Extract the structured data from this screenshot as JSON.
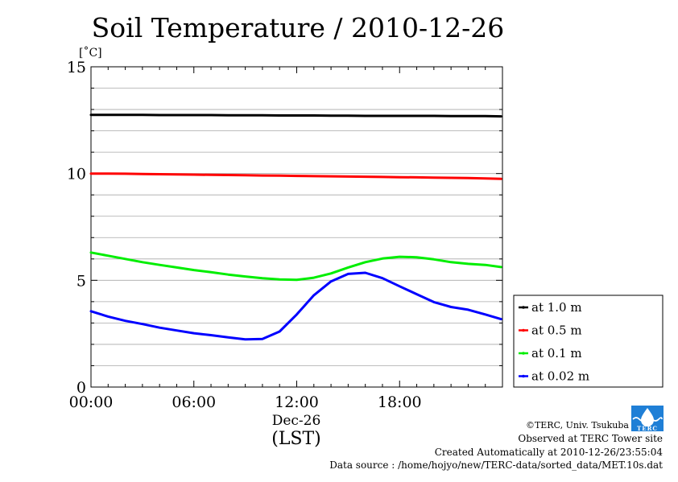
{
  "chart_data": {
    "type": "line",
    "title": "Soil Temperature / 2010-12-26",
    "y_unit_label": "[˚C]",
    "xlabel_date": "Dec-26",
    "xlabel": "(LST)",
    "ylabel": "",
    "ylim": [
      0,
      15
    ],
    "yticks": [
      0,
      5,
      10,
      15
    ],
    "xlim": [
      "00:00",
      "24:00"
    ],
    "xticks": [
      "00:00",
      "06:00",
      "12:00",
      "18:00"
    ],
    "grid": "horizontal",
    "legend_position": "right",
    "series": [
      {
        "name": "at 1.0 m",
        "color": "#000000",
        "x": [
          "00:00",
          "01:00",
          "02:00",
          "03:00",
          "04:00",
          "05:00",
          "06:00",
          "07:00",
          "08:00",
          "09:00",
          "10:00",
          "11:00",
          "12:00",
          "13:00",
          "14:00",
          "15:00",
          "16:00",
          "17:00",
          "18:00",
          "19:00",
          "20:00",
          "21:00",
          "22:00",
          "23:00",
          "23:55"
        ],
        "values": [
          12.75,
          12.75,
          12.75,
          12.75,
          12.74,
          12.74,
          12.74,
          12.74,
          12.73,
          12.73,
          12.73,
          12.72,
          12.72,
          12.72,
          12.71,
          12.71,
          12.7,
          12.7,
          12.7,
          12.7,
          12.7,
          12.69,
          12.69,
          12.69,
          12.68
        ]
      },
      {
        "name": "at 0.5 m",
        "color": "#ff0000",
        "x": [
          "00:00",
          "01:00",
          "02:00",
          "03:00",
          "04:00",
          "05:00",
          "06:00",
          "07:00",
          "08:00",
          "09:00",
          "10:00",
          "11:00",
          "12:00",
          "13:00",
          "14:00",
          "15:00",
          "16:00",
          "17:00",
          "18:00",
          "19:00",
          "20:00",
          "21:00",
          "22:00",
          "23:00",
          "23:55"
        ],
        "values": [
          10.0,
          10.0,
          9.99,
          9.98,
          9.97,
          9.96,
          9.95,
          9.94,
          9.93,
          9.92,
          9.91,
          9.9,
          9.89,
          9.88,
          9.87,
          9.86,
          9.85,
          9.84,
          9.83,
          9.82,
          9.81,
          9.8,
          9.79,
          9.77,
          9.75
        ]
      },
      {
        "name": "at 0.1 m",
        "color": "#00ee00",
        "x": [
          "00:00",
          "01:00",
          "02:00",
          "03:00",
          "04:00",
          "05:00",
          "06:00",
          "07:00",
          "08:00",
          "09:00",
          "10:00",
          "11:00",
          "12:00",
          "13:00",
          "14:00",
          "15:00",
          "16:00",
          "17:00",
          "18:00",
          "19:00",
          "20:00",
          "21:00",
          "22:00",
          "23:00",
          "23:55"
        ],
        "values": [
          6.3,
          6.15,
          6.0,
          5.85,
          5.72,
          5.6,
          5.48,
          5.38,
          5.27,
          5.18,
          5.1,
          5.04,
          5.02,
          5.12,
          5.32,
          5.6,
          5.85,
          6.02,
          6.1,
          6.08,
          5.98,
          5.85,
          5.77,
          5.72,
          5.62
        ]
      },
      {
        "name": "at 0.02 m",
        "color": "#0000ff",
        "x": [
          "00:00",
          "01:00",
          "02:00",
          "03:00",
          "04:00",
          "05:00",
          "06:00",
          "07:00",
          "08:00",
          "09:00",
          "10:00",
          "11:00",
          "12:00",
          "13:00",
          "14:00",
          "15:00",
          "16:00",
          "17:00",
          "18:00",
          "19:00",
          "20:00",
          "21:00",
          "22:00",
          "23:00",
          "23:55"
        ],
        "values": [
          3.55,
          3.3,
          3.1,
          2.95,
          2.78,
          2.65,
          2.52,
          2.43,
          2.33,
          2.23,
          2.25,
          2.6,
          3.4,
          4.3,
          4.95,
          5.3,
          5.35,
          5.1,
          4.72,
          4.35,
          3.98,
          3.75,
          3.62,
          3.4,
          3.18
        ]
      }
    ]
  },
  "footer": {
    "copyright": "©TERC, Univ. Tsukuba",
    "site": "Observed at TERC Tower site",
    "created": "Created Automatically at 2010-12-26/23:55:04",
    "source": "Data source : /home/hojyo/new/TERC-data/sorted_data/MET.10s.dat",
    "logo_text": "TERC"
  }
}
